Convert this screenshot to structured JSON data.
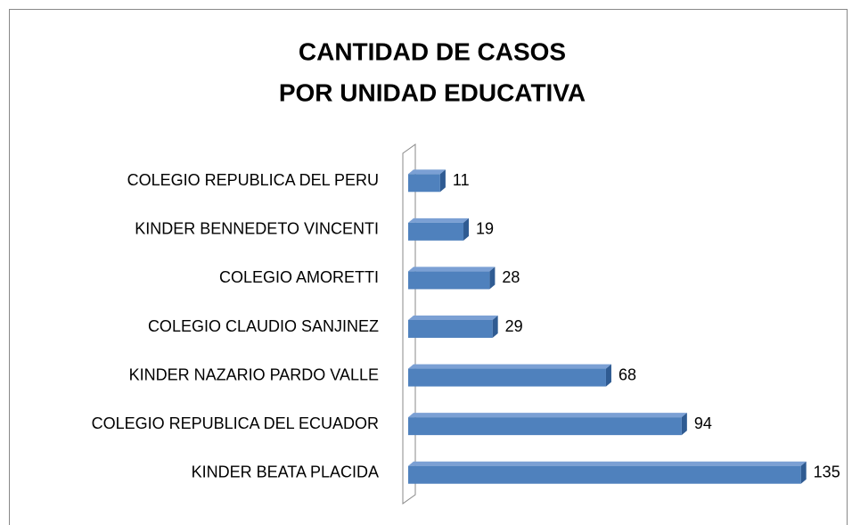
{
  "chart_data": {
    "type": "bar",
    "orientation": "horizontal",
    "title": [
      "CANTIDAD DE CASOS",
      "POR UNIDAD EDUCATIVA"
    ],
    "categories": [
      "COLEGIO REPUBLICA DEL PERU",
      "KINDER BENNEDETO  VINCENTI",
      "COLEGIO AMORETTI",
      "COLEGIO CLAUDIO SANJINEZ",
      "KINDER NAZARIO PARDO VALLE",
      "COLEGIO REPUBLICA DEL ECUADOR",
      "KINDER BEATA PLACIDA"
    ],
    "values": [
      11,
      19,
      28,
      29,
      68,
      94,
      135
    ],
    "color": "#4f81bd",
    "xlim": [
      0,
      140
    ]
  }
}
